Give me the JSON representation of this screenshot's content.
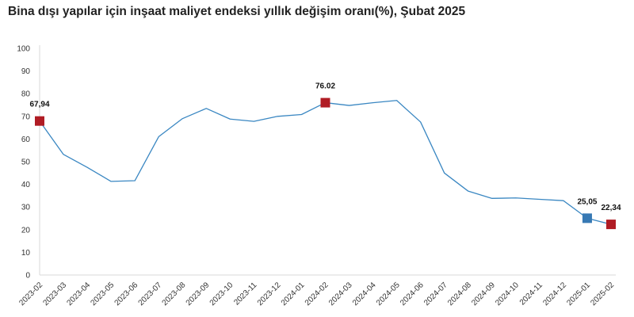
{
  "chart_data": {
    "type": "line",
    "title": "Bina dışı yapılar için inşaat maliyet endeksi yıllık değişim oranı(%), Şubat 2025",
    "xlabel": "",
    "ylabel": "",
    "ylim": [
      0,
      100
    ],
    "yticks": [
      "0",
      "10",
      "20",
      "30",
      "40",
      "50",
      "60",
      "70",
      "80",
      "90",
      "100"
    ],
    "grid": false,
    "legend": "none",
    "categories": [
      "2023-02",
      "2023-03",
      "2023-04",
      "2023-05",
      "2023-06",
      "2023-07",
      "2023-08",
      "2023-09",
      "2023-10",
      "2023-11",
      "2023-12",
      "2024-01",
      "2024-02",
      "2024-03",
      "2024-04",
      "2024-05",
      "2024-06",
      "2024-07",
      "2024-08",
      "2024-09",
      "2024-10",
      "2024-11",
      "2024-12",
      "2025-01",
      "2025-02"
    ],
    "series": [
      {
        "values": [
          67.94,
          53.2,
          47.5,
          41.3,
          41.6,
          61.0,
          69.0,
          73.5,
          68.8,
          67.8,
          70.0,
          70.8,
          76.02,
          74.8,
          76.0,
          77.0,
          67.5,
          45.0,
          37.0,
          33.8,
          34.0,
          33.4,
          32.8,
          25.05,
          22.34
        ],
        "color": "#3a87c2"
      }
    ],
    "highlighted_points": [
      {
        "index": 0,
        "label": "67,94",
        "color": "#b01c24"
      },
      {
        "index": 12,
        "label": "76.02",
        "color": "#b01c24"
      },
      {
        "index": 23,
        "label": "25,05",
        "color": "#3779b4"
      },
      {
        "index": 24,
        "label": "22,34",
        "color": "#b01c24"
      }
    ],
    "axis_color": "#d9d9d9"
  }
}
